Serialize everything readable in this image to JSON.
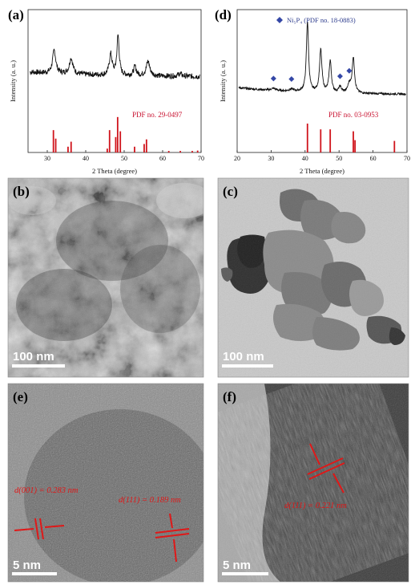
{
  "panels": {
    "a": "(a)",
    "b": "(b)",
    "c": "(c)",
    "d": "(d)",
    "e": "(e)",
    "f": "(f)"
  },
  "chart_data": [
    {
      "type": "line",
      "panel": "a",
      "xlabel": "2 Theta (degree)",
      "ylabel": "Intensity (a. u.)",
      "xlim": [
        25,
        70
      ],
      "xticks": [
        30,
        40,
        50,
        60,
        70
      ],
      "reference": {
        "label": "PDF no. 29-0497",
        "color": "#d0141c",
        "peaks": [
          [
            31.6,
            0.58
          ],
          [
            32.2,
            0.36
          ],
          [
            35.4,
            0.15
          ],
          [
            36.2,
            0.28
          ],
          [
            45.6,
            0.1
          ],
          [
            46.2,
            0.58
          ],
          [
            47.8,
            0.4
          ],
          [
            48.3,
            0.92
          ],
          [
            49.0,
            0.55
          ],
          [
            52.7,
            0.15
          ],
          [
            55.2,
            0.22
          ],
          [
            55.8,
            0.34
          ],
          [
            61.6,
            0.04
          ],
          [
            64.6,
            0.04
          ],
          [
            67.7,
            0.04
          ],
          [
            69.1,
            0.05
          ]
        ]
      },
      "pattern": {
        "color": "#111111",
        "peaks": [
          [
            31.8,
            0.55,
            0.5
          ],
          [
            36.2,
            0.38,
            0.55
          ],
          [
            46.5,
            0.5,
            0.45
          ],
          [
            48.4,
            0.95,
            0.35
          ],
          [
            52.8,
            0.22,
            0.4
          ],
          [
            56.2,
            0.35,
            0.55
          ],
          [
            64.5,
            0.06,
            0.6
          ]
        ]
      }
    },
    {
      "type": "line",
      "panel": "d",
      "xlabel": "2 Theta (degree)",
      "ylabel": "Intensity (a. u.)",
      "xlim": [
        20,
        70
      ],
      "xticks": [
        20,
        30,
        40,
        50,
        60,
        70
      ],
      "legend": "Ni₅P₄ (PDF no. 18-0883)",
      "reference": {
        "label": "PDF no. 03-0953",
        "color": "#d0141c",
        "peaks": [
          [
            40.7,
            0.75
          ],
          [
            44.6,
            0.6
          ],
          [
            47.4,
            0.6
          ],
          [
            54.2,
            0.55
          ],
          [
            54.7,
            0.32
          ],
          [
            66.3,
            0.3
          ]
        ]
      },
      "pattern": {
        "color": "#111111",
        "peaks": [
          [
            40.7,
            1.0,
            0.38
          ],
          [
            44.6,
            0.6,
            0.42
          ],
          [
            47.4,
            0.45,
            0.4
          ],
          [
            50.3,
            0.08,
            0.5
          ],
          [
            53.0,
            0.12,
            0.5
          ],
          [
            54.2,
            0.5,
            0.42
          ],
          [
            30.7,
            0.03,
            0.8
          ],
          [
            36.0,
            0.03,
            0.8
          ]
        ]
      },
      "markers": [
        30.7,
        36.0,
        50.3,
        53.0
      ]
    }
  ],
  "micrographs": {
    "b": {
      "scale": "100 nm"
    },
    "c": {
      "scale": "100 nm"
    },
    "e": {
      "scale": "5 nm",
      "d1_label": "d(001) = 0.283 nm",
      "d2_label": "d(111) = 0.189 nm"
    },
    "f": {
      "scale": "5 nm",
      "d1_label": "d(111) = 0.221 nm"
    }
  }
}
